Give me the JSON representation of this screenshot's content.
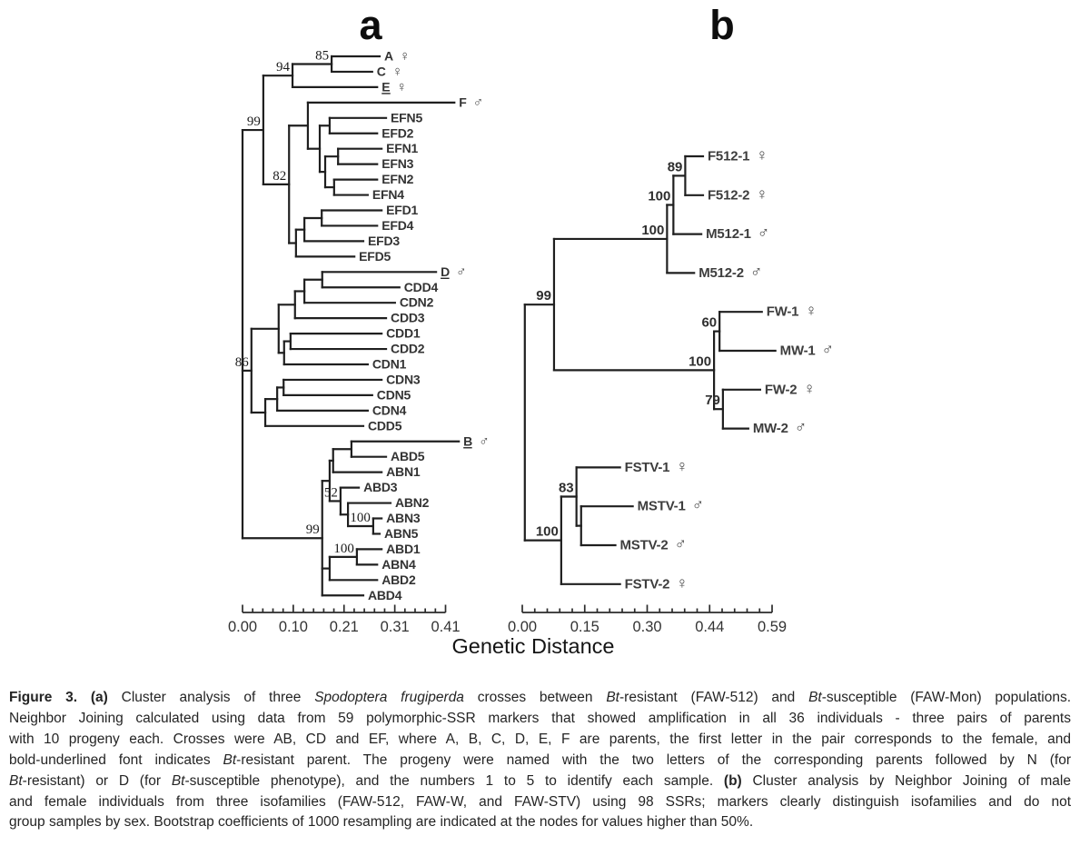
{
  "figure": {
    "panel_a_label": "a",
    "panel_b_label": "b",
    "xaxis_label": "Genetic Distance",
    "colors": {
      "line": "#1f1f1f",
      "leaf_label": "#333333",
      "sex_symbol": "#4a4a4a",
      "bootstrap": "#1c1c1c",
      "axis": "#2b2b2b",
      "background": "#ffffff"
    }
  },
  "chart_data": [
    {
      "type": "dendrogram",
      "panel": "a",
      "title": "Cluster analysis of three Spodoptera frugiperda crosses (Neighbor Joining)",
      "xlabel": "Genetic Distance",
      "axis": {
        "ticks": [
          "0.00",
          "0.10",
          "0.21",
          "0.31",
          "0.41"
        ],
        "range": [
          0,
          0.41
        ],
        "minor_ticks_per_interval": 4
      },
      "tree": {
        "x": 0,
        "c": [
          {
            "x": 0.042,
            "boot": "99",
            "c": [
              {
                "x": 0.101,
                "boot": "94",
                "c": [
                  {
                    "x": 0.18,
                    "boot": "85",
                    "c": [
                      {
                        "x": 0.277,
                        "label": "A",
                        "sex": "♀"
                      },
                      {
                        "x": 0.262,
                        "label": "C",
                        "sex": "♀"
                      }
                    ]
                  },
                  {
                    "x": 0.272,
                    "label": "E",
                    "sex": "♀",
                    "underline": true
                  }
                ]
              },
              {
                "x": 0.094,
                "boot": "82",
                "c": [
                  {
                    "x": 0.132,
                    "c": [
                      {
                        "x": 0.428,
                        "label": "F",
                        "sex": "♂"
                      },
                      {
                        "x": 0.156,
                        "c": [
                          {
                            "x": 0.176,
                            "c": [
                              {
                                "x": 0.29,
                                "label": "EFN5"
                              },
                              {
                                "x": 0.272,
                                "label": "EFD2"
                              }
                            ]
                          },
                          {
                            "x": 0.167,
                            "c": [
                              {
                                "x": 0.193,
                                "c": [
                                  {
                                    "x": 0.281,
                                    "label": "EFN1"
                                  },
                                  {
                                    "x": 0.272,
                                    "label": "EFN3"
                                  }
                                ]
                              },
                              {
                                "x": 0.185,
                                "c": [
                                  {
                                    "x": 0.272,
                                    "label": "EFN2"
                                  },
                                  {
                                    "x": 0.253,
                                    "label": "EFN4"
                                  }
                                ]
                              }
                            ]
                          }
                        ]
                      }
                    ]
                  },
                  {
                    "x": 0.108,
                    "c": [
                      {
                        "x": 0.125,
                        "c": [
                          {
                            "x": 0.16,
                            "c": [
                              {
                                "x": 0.281,
                                "label": "EFD1"
                              },
                              {
                                "x": 0.272,
                                "label": "EFD4"
                              }
                            ]
                          },
                          {
                            "x": 0.244,
                            "label": "EFD3"
                          }
                        ]
                      },
                      {
                        "x": 0.226,
                        "label": "EFD5"
                      }
                    ]
                  }
                ]
              }
            ]
          },
          {
            "x": 0.018,
            "boot": "86",
            "c": [
              {
                "x": 0.073,
                "c": [
                  {
                    "x": 0.106,
                    "c": [
                      {
                        "x": 0.125,
                        "c": [
                          {
                            "x": 0.161,
                            "c": [
                              {
                                "x": 0.391,
                                "label": "D",
                                "sex": "♂",
                                "underline": true
                              },
                              {
                                "x": 0.317,
                                "label": "CDD4"
                              }
                            ]
                          },
                          {
                            "x": 0.308,
                            "label": "CDN2"
                          }
                        ]
                      },
                      {
                        "x": 0.29,
                        "label": "CDD3"
                      }
                    ]
                  },
                  {
                    "x": 0.084,
                    "c": [
                      {
                        "x": 0.097,
                        "c": [
                          {
                            "x": 0.281,
                            "label": "CDD1"
                          },
                          {
                            "x": 0.29,
                            "label": "CDD2"
                          }
                        ]
                      },
                      {
                        "x": 0.253,
                        "label": "CDN1"
                      }
                    ]
                  }
                ]
              },
              {
                "x": 0.046,
                "c": [
                  {
                    "x": 0.07,
                    "c": [
                      {
                        "x": 0.083,
                        "c": [
                          {
                            "x": 0.281,
                            "label": "CDN3"
                          },
                          {
                            "x": 0.262,
                            "label": "CDN5"
                          }
                        ]
                      },
                      {
                        "x": 0.253,
                        "label": "CDN4"
                      }
                    ]
                  },
                  {
                    "x": 0.244,
                    "label": "CDD5"
                  }
                ]
              }
            ]
          },
          {
            "x": 0.161,
            "boot": "99",
            "c": [
              {
                "x": 0.176,
                "c": [
                  {
                    "x": 0.183,
                    "c": [
                      {
                        "x": 0.22,
                        "c": [
                          {
                            "x": 0.437,
                            "label": "B",
                            "sex": "♂",
                            "underline": true
                          },
                          {
                            "x": 0.29,
                            "label": "ABD5"
                          }
                        ]
                      },
                      {
                        "x": 0.281,
                        "label": "ABN1"
                      }
                    ]
                  },
                  {
                    "x": 0.198,
                    "boot": "52",
                    "c": [
                      {
                        "x": 0.235,
                        "label": "ABD3"
                      },
                      {
                        "x": 0.213,
                        "c": [
                          {
                            "x": 0.299,
                            "label": "ABN2"
                          },
                          {
                            "x": 0.264,
                            "boot": "100",
                            "c": [
                              {
                                "x": 0.281,
                                "label": "ABN3"
                              },
                              {
                                "x": 0.277,
                                "label": "ABN5"
                              }
                            ]
                          }
                        ]
                      }
                    ]
                  }
                ]
              },
              {
                "x": 0.176,
                "c": [
                  {
                    "x": 0.231,
                    "boot": "100",
                    "c": [
                      {
                        "x": 0.281,
                        "label": "ABD1"
                      },
                      {
                        "x": 0.272,
                        "label": "ABN4"
                      }
                    ]
                  },
                  {
                    "x": 0.272,
                    "label": "ABD2"
                  }
                ]
              },
              {
                "x": 0.244,
                "label": "ABD4"
              }
            ]
          }
        ]
      }
    },
    {
      "type": "dendrogram",
      "panel": "b",
      "title": "Cluster analysis of male and female individuals from three isofamilies (Neighbor Joining)",
      "xlabel": "Genetic Distance",
      "axis": {
        "ticks": [
          "0.00",
          "0.15",
          "0.30",
          "0.44",
          "0.59"
        ],
        "range": [
          0,
          0.59
        ],
        "minor_ticks_per_interval": 4
      },
      "tree": {
        "x": 0.006,
        "c": [
          {
            "x": 0.075,
            "boot": "99",
            "c": [
              {
                "x": 0.342,
                "boot": "100",
                "c": [
                  {
                    "x": 0.357,
                    "boot": "100",
                    "c": [
                      {
                        "x": 0.385,
                        "boot": "89",
                        "c": [
                          {
                            "x": 0.427,
                            "label": "F512-1",
                            "sex": "♀"
                          },
                          {
                            "x": 0.427,
                            "label": "F512-2",
                            "sex": "♀"
                          }
                        ]
                      },
                      {
                        "x": 0.423,
                        "label": "M512-1",
                        "sex": "♂"
                      }
                    ]
                  },
                  {
                    "x": 0.406,
                    "label": "M512-2",
                    "sex": "♂"
                  }
                ]
              },
              {
                "x": 0.453,
                "boot": "100",
                "c": [
                  {
                    "x": 0.466,
                    "boot": "60",
                    "c": [
                      {
                        "x": 0.566,
                        "label": "FW-1",
                        "sex": "♀"
                      },
                      {
                        "x": 0.598,
                        "label": "MW-1",
                        "sex": "♂"
                      }
                    ]
                  },
                  {
                    "x": 0.474,
                    "boot": "79",
                    "c": [
                      {
                        "x": 0.562,
                        "label": "FW-2",
                        "sex": "♀"
                      },
                      {
                        "x": 0.534,
                        "label": "MW-2",
                        "sex": "♂"
                      }
                    ]
                  }
                ]
              }
            ]
          },
          {
            "x": 0.092,
            "boot": "100",
            "c": [
              {
                "x": 0.128,
                "boot": "83",
                "c": [
                  {
                    "x": 0.231,
                    "label": "FSTV-1",
                    "sex": "♀"
                  },
                  {
                    "x": 0.139,
                    "c": [
                      {
                        "x": 0.261,
                        "label": "MSTV-1",
                        "sex": "♂"
                      },
                      {
                        "x": 0.22,
                        "label": "MSTV-2",
                        "sex": "♂"
                      }
                    ]
                  }
                ]
              },
              {
                "x": 0.231,
                "label": "FSTV-2",
                "sex": "♀"
              }
            ]
          }
        ]
      }
    }
  ],
  "caption": {
    "lines": [
      [
        {
          "t": "Figure 3. (a) ",
          "b": true
        },
        {
          "t": "Cluster analysis of three "
        },
        {
          "t": "Spodoptera frugiperda",
          "i": true
        },
        {
          "t": " crosses between "
        },
        {
          "t": "Bt",
          "i": true
        },
        {
          "t": "-resistant (FAW-512) and "
        },
        {
          "t": "Bt",
          "i": true
        },
        {
          "t": "-susceptible (FAW-Mon) populations."
        }
      ],
      [
        {
          "t": "Neighbor Joining calculated using data from 59 polymorphic-SSR markers that showed amplification in all 36 individuals - three pairs of parents"
        }
      ],
      [
        {
          "t": "with 10 progeny each.  Crosses were AB, CD and EF, where A, B, C, D, E, F are parents, the first letter in the pair corresponds to the female, and"
        }
      ],
      [
        {
          "t": "bold-underlined font indicates "
        },
        {
          "t": "Bt",
          "i": true
        },
        {
          "t": "-resistant parent.  The progeny were named with the two letters of the corresponding parents followed by N (for"
        }
      ],
      [
        {
          "t": "Bt",
          "i": true
        },
        {
          "t": "-resistant) or D (for "
        },
        {
          "t": "Bt",
          "i": true
        },
        {
          "t": "-susceptible phenotype), and the numbers 1 to 5 to identify each sample. "
        },
        {
          "t": "(b)",
          "b": true
        },
        {
          "t": " Cluster analysis by Neighbor Joining of male"
        }
      ],
      [
        {
          "t": "and female individuals from three isofamilies (FAW-512, FAW-W, and FAW-STV) using 98 SSRs; markers clearly distinguish isofamilies and do not"
        }
      ],
      [
        {
          "t": "group samples by sex.  Bootstrap coefficients of 1000 resampling are indicated at the nodes for values higher than 50%."
        }
      ]
    ]
  }
}
